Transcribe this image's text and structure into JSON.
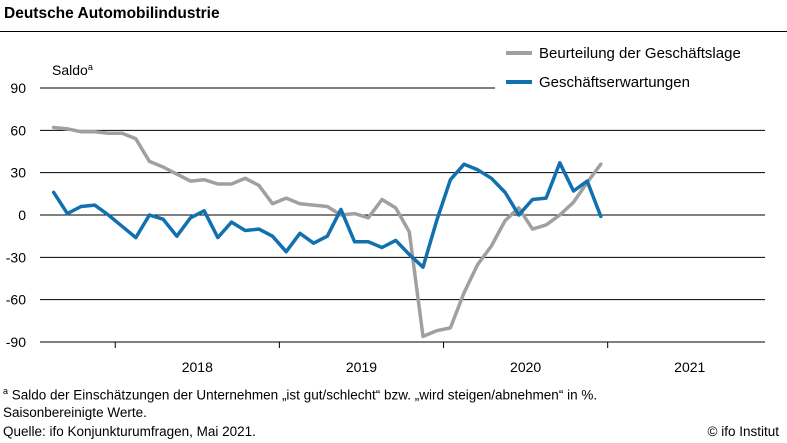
{
  "title": "Deutsche Automobilindustrie",
  "chart_data": {
    "type": "line",
    "ylabel": "Saldo",
    "ylabel_sup": "a",
    "ylim": [
      -90,
      90
    ],
    "yticks": [
      90,
      60,
      30,
      0,
      -30,
      -60,
      -90
    ],
    "ytick_labels": [
      "90",
      "60",
      "30",
      "0",
      "-30",
      "-60",
      "-90"
    ],
    "grid": true,
    "legend_position": "top-right",
    "x_start": "2017-07",
    "x_end": "2021-12",
    "year_labels": [
      "2018",
      "2019",
      "2020",
      "2021"
    ],
    "series": [
      {
        "name": "Beurteilung der Geschäftslage",
        "color": "#a0a0a0",
        "values": [
          62,
          61,
          59,
          59,
          58,
          58,
          54,
          38,
          34,
          29,
          24,
          25,
          22,
          22,
          26,
          21,
          8,
          12,
          8,
          7,
          6,
          0,
          1,
          -2,
          11,
          5,
          -12,
          -86,
          -82,
          -80,
          -55,
          -35,
          -22,
          -4,
          5,
          -10,
          -7,
          0,
          9,
          23,
          36
        ]
      },
      {
        "name": "Geschäftserwartungen",
        "color": "#1070b0",
        "values": [
          16,
          1,
          6,
          7,
          0,
          -8,
          -16,
          0,
          -3,
          -15,
          -2,
          3,
          -16,
          -5,
          -11,
          -10,
          -15,
          -26,
          -13,
          -20,
          -15,
          4,
          -19,
          -19,
          -23,
          -18,
          -28,
          -37,
          -4,
          25,
          36,
          32,
          26,
          16,
          0,
          11,
          12,
          37,
          17,
          24,
          -1
        ]
      }
    ]
  },
  "notes": {
    "footnote_sup": "a",
    "footnote": " Saldo der Einschätzungen der Unternehmen „ist gut/schlecht“ bzw. „wird steigen/abnehmen“ in %.",
    "adjusted": "Saisonbereinigte Werte.",
    "source": "Quelle: ifo Konjunkturumfragen, Mai 2021.",
    "credit": "© ifo Institut"
  }
}
